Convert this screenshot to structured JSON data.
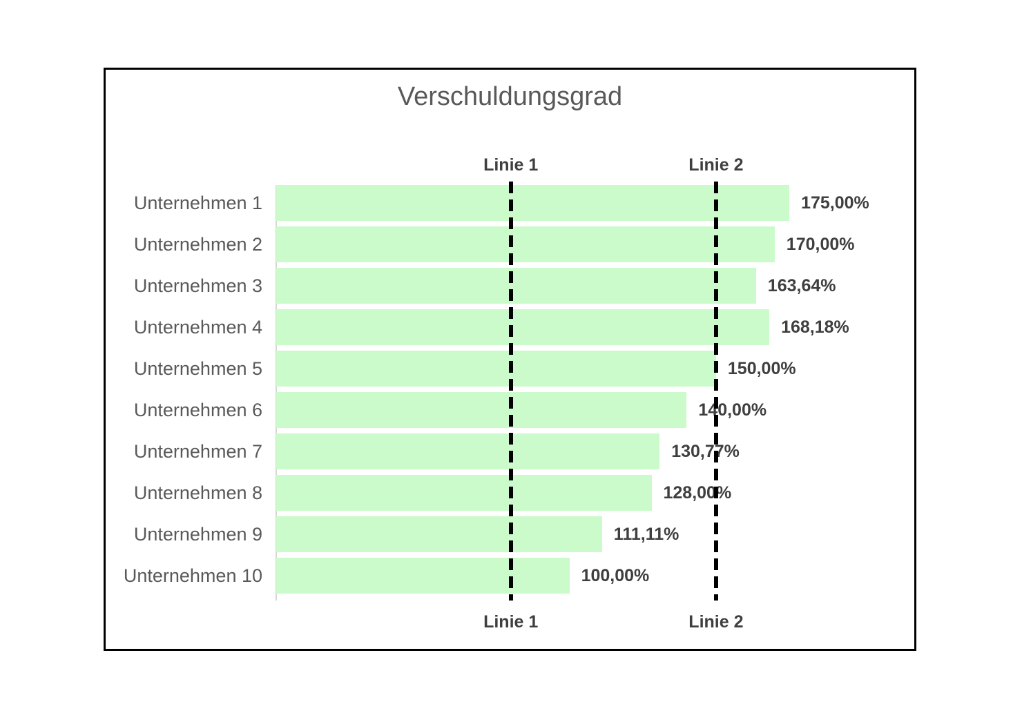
{
  "chart_data": {
    "type": "bar",
    "orientation": "horizontal",
    "title": "Verschuldungsgrad",
    "categories": [
      "Unternehmen 1",
      "Unternehmen 2",
      "Unternehmen 3",
      "Unternehmen 4",
      "Unternehmen 5",
      "Unternehmen 6",
      "Unternehmen 7",
      "Unternehmen 8",
      "Unternehmen 9",
      "Unternehmen 10"
    ],
    "values": [
      175.0,
      170.0,
      163.64,
      168.18,
      150.0,
      140.0,
      130.77,
      128.0,
      111.11,
      100.0
    ],
    "value_labels": [
      "175,00%",
      "170,00%",
      "163,64%",
      "168,18%",
      "150,00%",
      "140,00%",
      "130,77%",
      "128,00%",
      "111,11%",
      "100,00%"
    ],
    "xlim": [
      0,
      175
    ],
    "grid": false,
    "legend": false,
    "bar_color": "#cbfbcb",
    "title_color": "#595959",
    "category_label_color": "#595959",
    "value_label_color": "#3f3f3f",
    "reference_lines": [
      {
        "label": "Linie 1",
        "value": 80,
        "style": "dashed",
        "color": "#000000"
      },
      {
        "label": "Linie 2",
        "value": 150,
        "style": "dashed",
        "color": "#000000"
      }
    ]
  }
}
